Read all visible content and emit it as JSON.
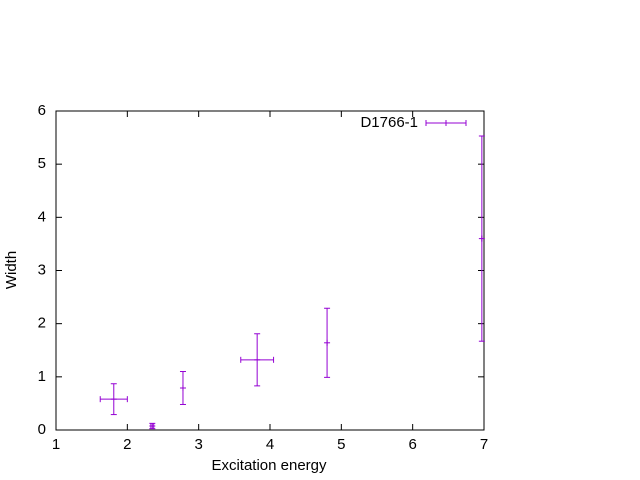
{
  "chart_data": {
    "type": "errorbar",
    "xlabel": "Excitation energy",
    "ylabel": "Width",
    "series": [
      {
        "name": "D1766-1",
        "color": "#9400d3",
        "x": [
          1.81,
          2.35,
          2.78,
          3.82,
          4.8,
          6.97
        ],
        "values": [
          0.58,
          0.075,
          0.79,
          1.32,
          1.64,
          3.6
        ],
        "xerr": [
          0.19,
          0.02,
          0,
          0.23,
          0,
          0
        ],
        "yerr": [
          0.29,
          0.05,
          0.31,
          0.49,
          0.65,
          1.93
        ]
      }
    ],
    "xlim": [
      1,
      7
    ],
    "xticks": [
      1,
      2,
      3,
      4,
      5,
      6,
      7
    ],
    "ylim": [
      0,
      6
    ],
    "yticks": [
      0,
      1,
      2,
      3,
      4,
      5,
      6
    ],
    "legend": "top-right"
  }
}
